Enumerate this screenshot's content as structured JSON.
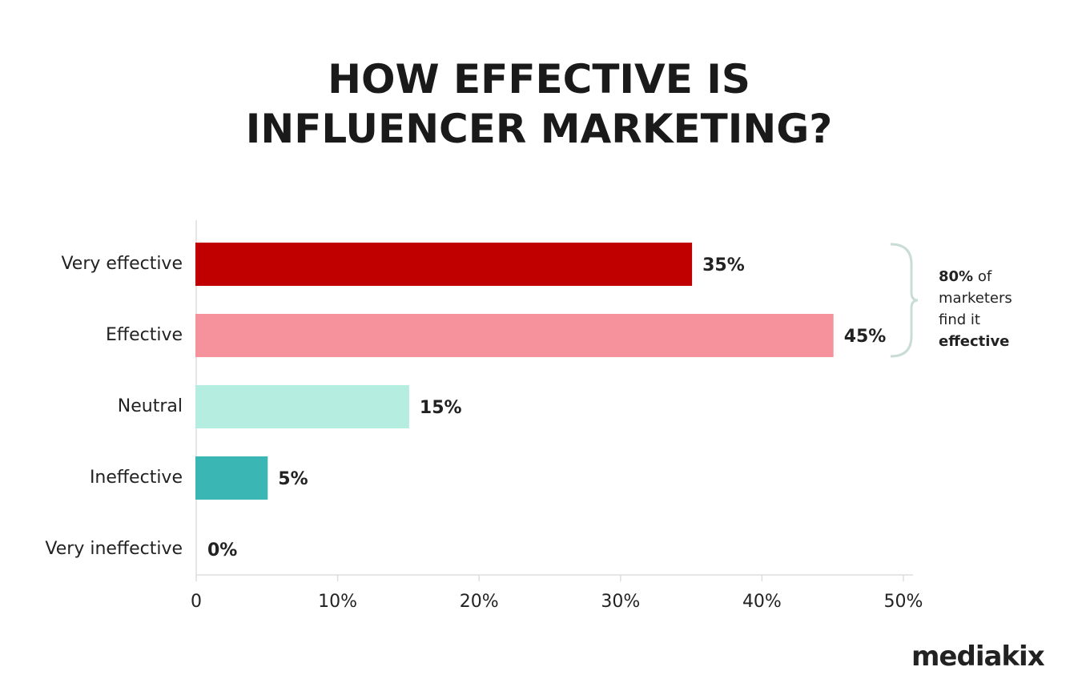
{
  "chart_data": {
    "type": "bar",
    "orientation": "horizontal",
    "title": "HOW EFFECTIVE IS INFLUENCER MARKETING?",
    "categories": [
      "Very effective",
      "Effective",
      "Neutral",
      "Ineffective",
      "Very ineffective"
    ],
    "values": [
      35,
      45,
      15,
      5,
      0
    ],
    "value_labels": [
      "35%",
      "45%",
      "15%",
      "5%",
      "0%"
    ],
    "colors": [
      "#c00000",
      "#f5929b",
      "#b5ede0",
      "#3ab7b5",
      "#555555"
    ],
    "xlim": [
      0,
      50
    ],
    "xticks": [
      0,
      {
        "value": 10,
        "label": "10%"
      },
      {
        "value": 20,
        "label": "20%"
      },
      {
        "value": 30,
        "label": "30%"
      },
      {
        "value": 40,
        "label": "40%"
      },
      {
        "value": 50,
        "label": "50%"
      }
    ],
    "annotation": [
      "80%",
      "of marketers find it",
      "effective"
    ],
    "logo": "mediakix"
  }
}
